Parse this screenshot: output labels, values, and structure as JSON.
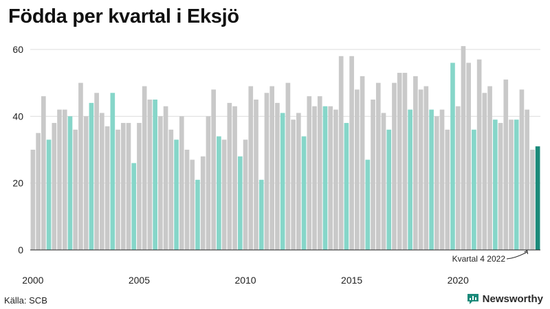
{
  "title": "Födda per kvartal i Eksjö",
  "source": "Källa: SCB",
  "brand": "Newsworthy",
  "colors": {
    "bar_default": "#c9c9c9",
    "bar_q4": "#86d6c9",
    "bar_latest": "#1b8a7a",
    "grid": "#dddddd",
    "axis": "#222222"
  },
  "chart_data": {
    "type": "bar",
    "title": "Födda per kvartal i Eksjö",
    "ylim": [
      0,
      62
    ],
    "yticks": [
      0,
      20,
      40,
      60
    ],
    "xticks": [
      "2000",
      "2005",
      "2010",
      "2015",
      "2020"
    ],
    "start_year": 2000,
    "annotation": "Kvartal 4 2022",
    "values": [
      30,
      35,
      46,
      33,
      38,
      42,
      42,
      40,
      36,
      50,
      40,
      44,
      47,
      41,
      37,
      47,
      36,
      38,
      38,
      26,
      38,
      49,
      45,
      45,
      40,
      43,
      36,
      33,
      40,
      30,
      27,
      21,
      28,
      40,
      48,
      34,
      33,
      44,
      43,
      28,
      33,
      49,
      45,
      21,
      47,
      49,
      44,
      41,
      50,
      39,
      41,
      34,
      46,
      43,
      46,
      43,
      43,
      42,
      58,
      38,
      58,
      48,
      52,
      27,
      45,
      50,
      41,
      36,
      50,
      53,
      53,
      42,
      52,
      48,
      49,
      42,
      40,
      42,
      36,
      56,
      43,
      61,
      56,
      36,
      57,
      47,
      49,
      39,
      38,
      51,
      39,
      39,
      48,
      42,
      30,
      31
    ]
  }
}
